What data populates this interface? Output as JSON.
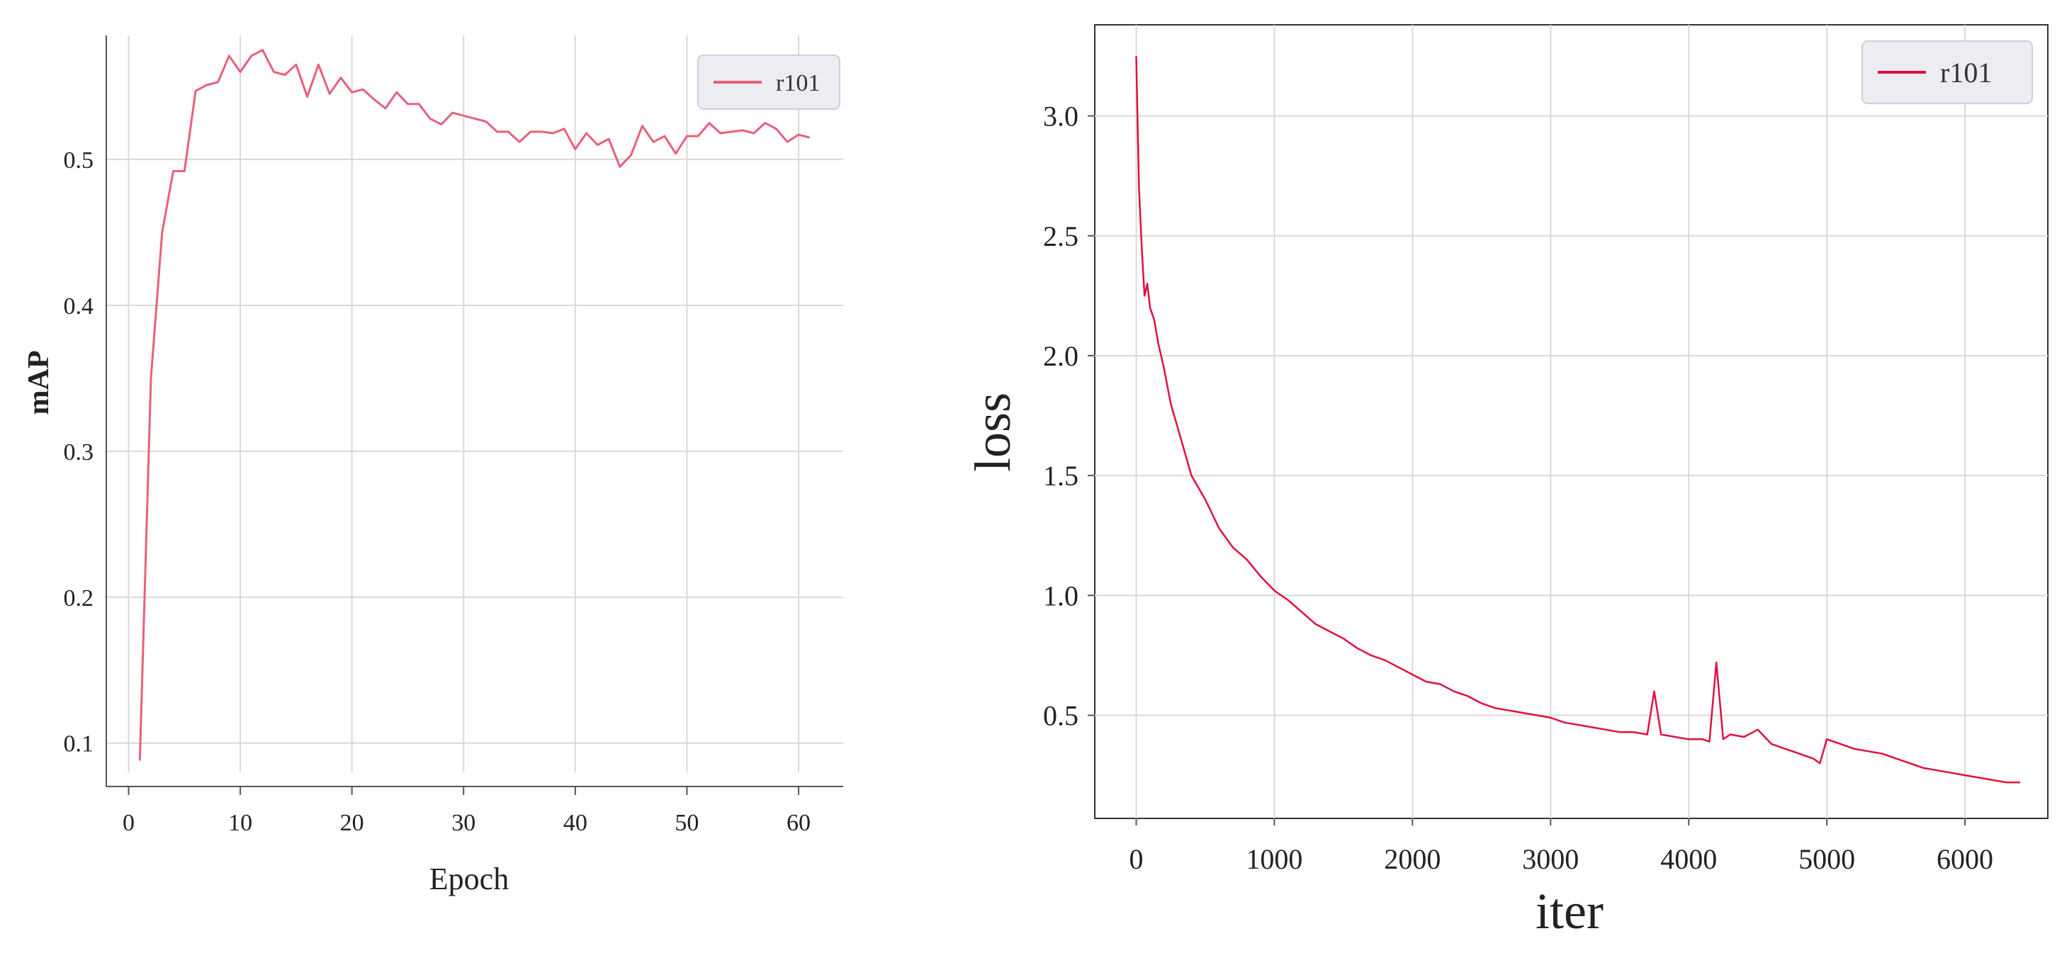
{
  "chart_data": [
    {
      "type": "line",
      "title": "",
      "xlabel": "Epoch",
      "ylabel": "mAP",
      "xlim": [
        -2,
        64
      ],
      "ylim": [
        0.08,
        0.585
      ],
      "xticks": [
        0,
        10,
        20,
        30,
        40,
        50,
        60
      ],
      "yticks": [
        0.1,
        0.2,
        0.3,
        0.4,
        0.5
      ],
      "grid": true,
      "legend": "top-right",
      "series": [
        {
          "name": "r101",
          "color": "#e8607a",
          "x": [
            1,
            2,
            3,
            4,
            5,
            6,
            7,
            8,
            9,
            10,
            11,
            12,
            13,
            14,
            15,
            16,
            17,
            18,
            19,
            20,
            21,
            22,
            23,
            24,
            25,
            26,
            27,
            28,
            29,
            30,
            31,
            32,
            33,
            34,
            35,
            36,
            37,
            38,
            39,
            40,
            41,
            42,
            43,
            44,
            45,
            46,
            47,
            48,
            49,
            50,
            51,
            52,
            53,
            54,
            55,
            56,
            57,
            58,
            59,
            60,
            61
          ],
          "values": [
            0.088,
            0.35,
            0.45,
            0.492,
            0.492,
            0.547,
            0.551,
            0.553,
            0.571,
            0.56,
            0.571,
            0.575,
            0.56,
            0.558,
            0.565,
            0.543,
            0.565,
            0.545,
            0.556,
            0.546,
            0.548,
            0.541,
            0.535,
            0.546,
            0.538,
            0.538,
            0.528,
            0.524,
            0.532,
            0.53,
            0.528,
            0.526,
            0.519,
            0.519,
            0.512,
            0.519,
            0.519,
            0.518,
            0.521,
            0.507,
            0.518,
            0.51,
            0.514,
            0.495,
            0.503,
            0.523,
            0.512,
            0.516,
            0.504,
            0.516,
            0.516,
            0.525,
            0.518,
            0.519,
            0.52,
            0.518,
            0.525,
            0.521,
            0.512,
            0.517,
            0.515
          ]
        }
      ]
    },
    {
      "type": "line",
      "title": "",
      "xlabel": "iter",
      "ylabel": "loss",
      "xlim": [
        -300,
        6600
      ],
      "ylim": [
        0.07,
        3.38
      ],
      "xticks": [
        0,
        1000,
        2000,
        3000,
        4000,
        5000,
        6000
      ],
      "yticks": [
        0.5,
        1.0,
        1.5,
        2.0,
        2.5,
        3.0
      ],
      "ytick_labels": [
        "0.5",
        "1.0",
        "1.5",
        "2.0",
        "2.5",
        "3.0"
      ],
      "grid": true,
      "legend": "top-right",
      "series": [
        {
          "name": "r101",
          "color": "#e0103e",
          "x": [
            0,
            20,
            40,
            60,
            80,
            100,
            130,
            160,
            200,
            250,
            300,
            350,
            400,
            450,
            500,
            600,
            700,
            800,
            900,
            1000,
            1100,
            1200,
            1300,
            1400,
            1500,
            1600,
            1700,
            1800,
            1900,
            2000,
            2100,
            2200,
            2300,
            2400,
            2500,
            2600,
            2700,
            2800,
            2900,
            3000,
            3100,
            3200,
            3300,
            3400,
            3500,
            3600,
            3700,
            3750,
            3800,
            3900,
            4000,
            4100,
            4150,
            4200,
            4250,
            4300,
            4400,
            4500,
            4600,
            4700,
            4800,
            4900,
            4950,
            5000,
            5050,
            5100,
            5200,
            5300,
            5400,
            5500,
            5600,
            5700,
            5800,
            5900,
            6000,
            6100,
            6200,
            6300,
            6400
          ],
          "values": [
            3.25,
            2.7,
            2.45,
            2.25,
            2.3,
            2.2,
            2.15,
            2.05,
            1.95,
            1.8,
            1.7,
            1.6,
            1.5,
            1.45,
            1.4,
            1.28,
            1.2,
            1.15,
            1.08,
            1.02,
            0.98,
            0.93,
            0.88,
            0.85,
            0.82,
            0.78,
            0.75,
            0.73,
            0.7,
            0.67,
            0.64,
            0.63,
            0.6,
            0.58,
            0.55,
            0.53,
            0.52,
            0.51,
            0.5,
            0.49,
            0.47,
            0.46,
            0.45,
            0.44,
            0.43,
            0.43,
            0.42,
            0.6,
            0.42,
            0.41,
            0.4,
            0.4,
            0.39,
            0.72,
            0.4,
            0.42,
            0.41,
            0.44,
            0.38,
            0.36,
            0.34,
            0.32,
            0.3,
            0.4,
            0.39,
            0.38,
            0.36,
            0.35,
            0.34,
            0.32,
            0.3,
            0.28,
            0.27,
            0.26,
            0.25,
            0.24,
            0.23,
            0.22,
            0.22
          ]
        }
      ]
    }
  ]
}
